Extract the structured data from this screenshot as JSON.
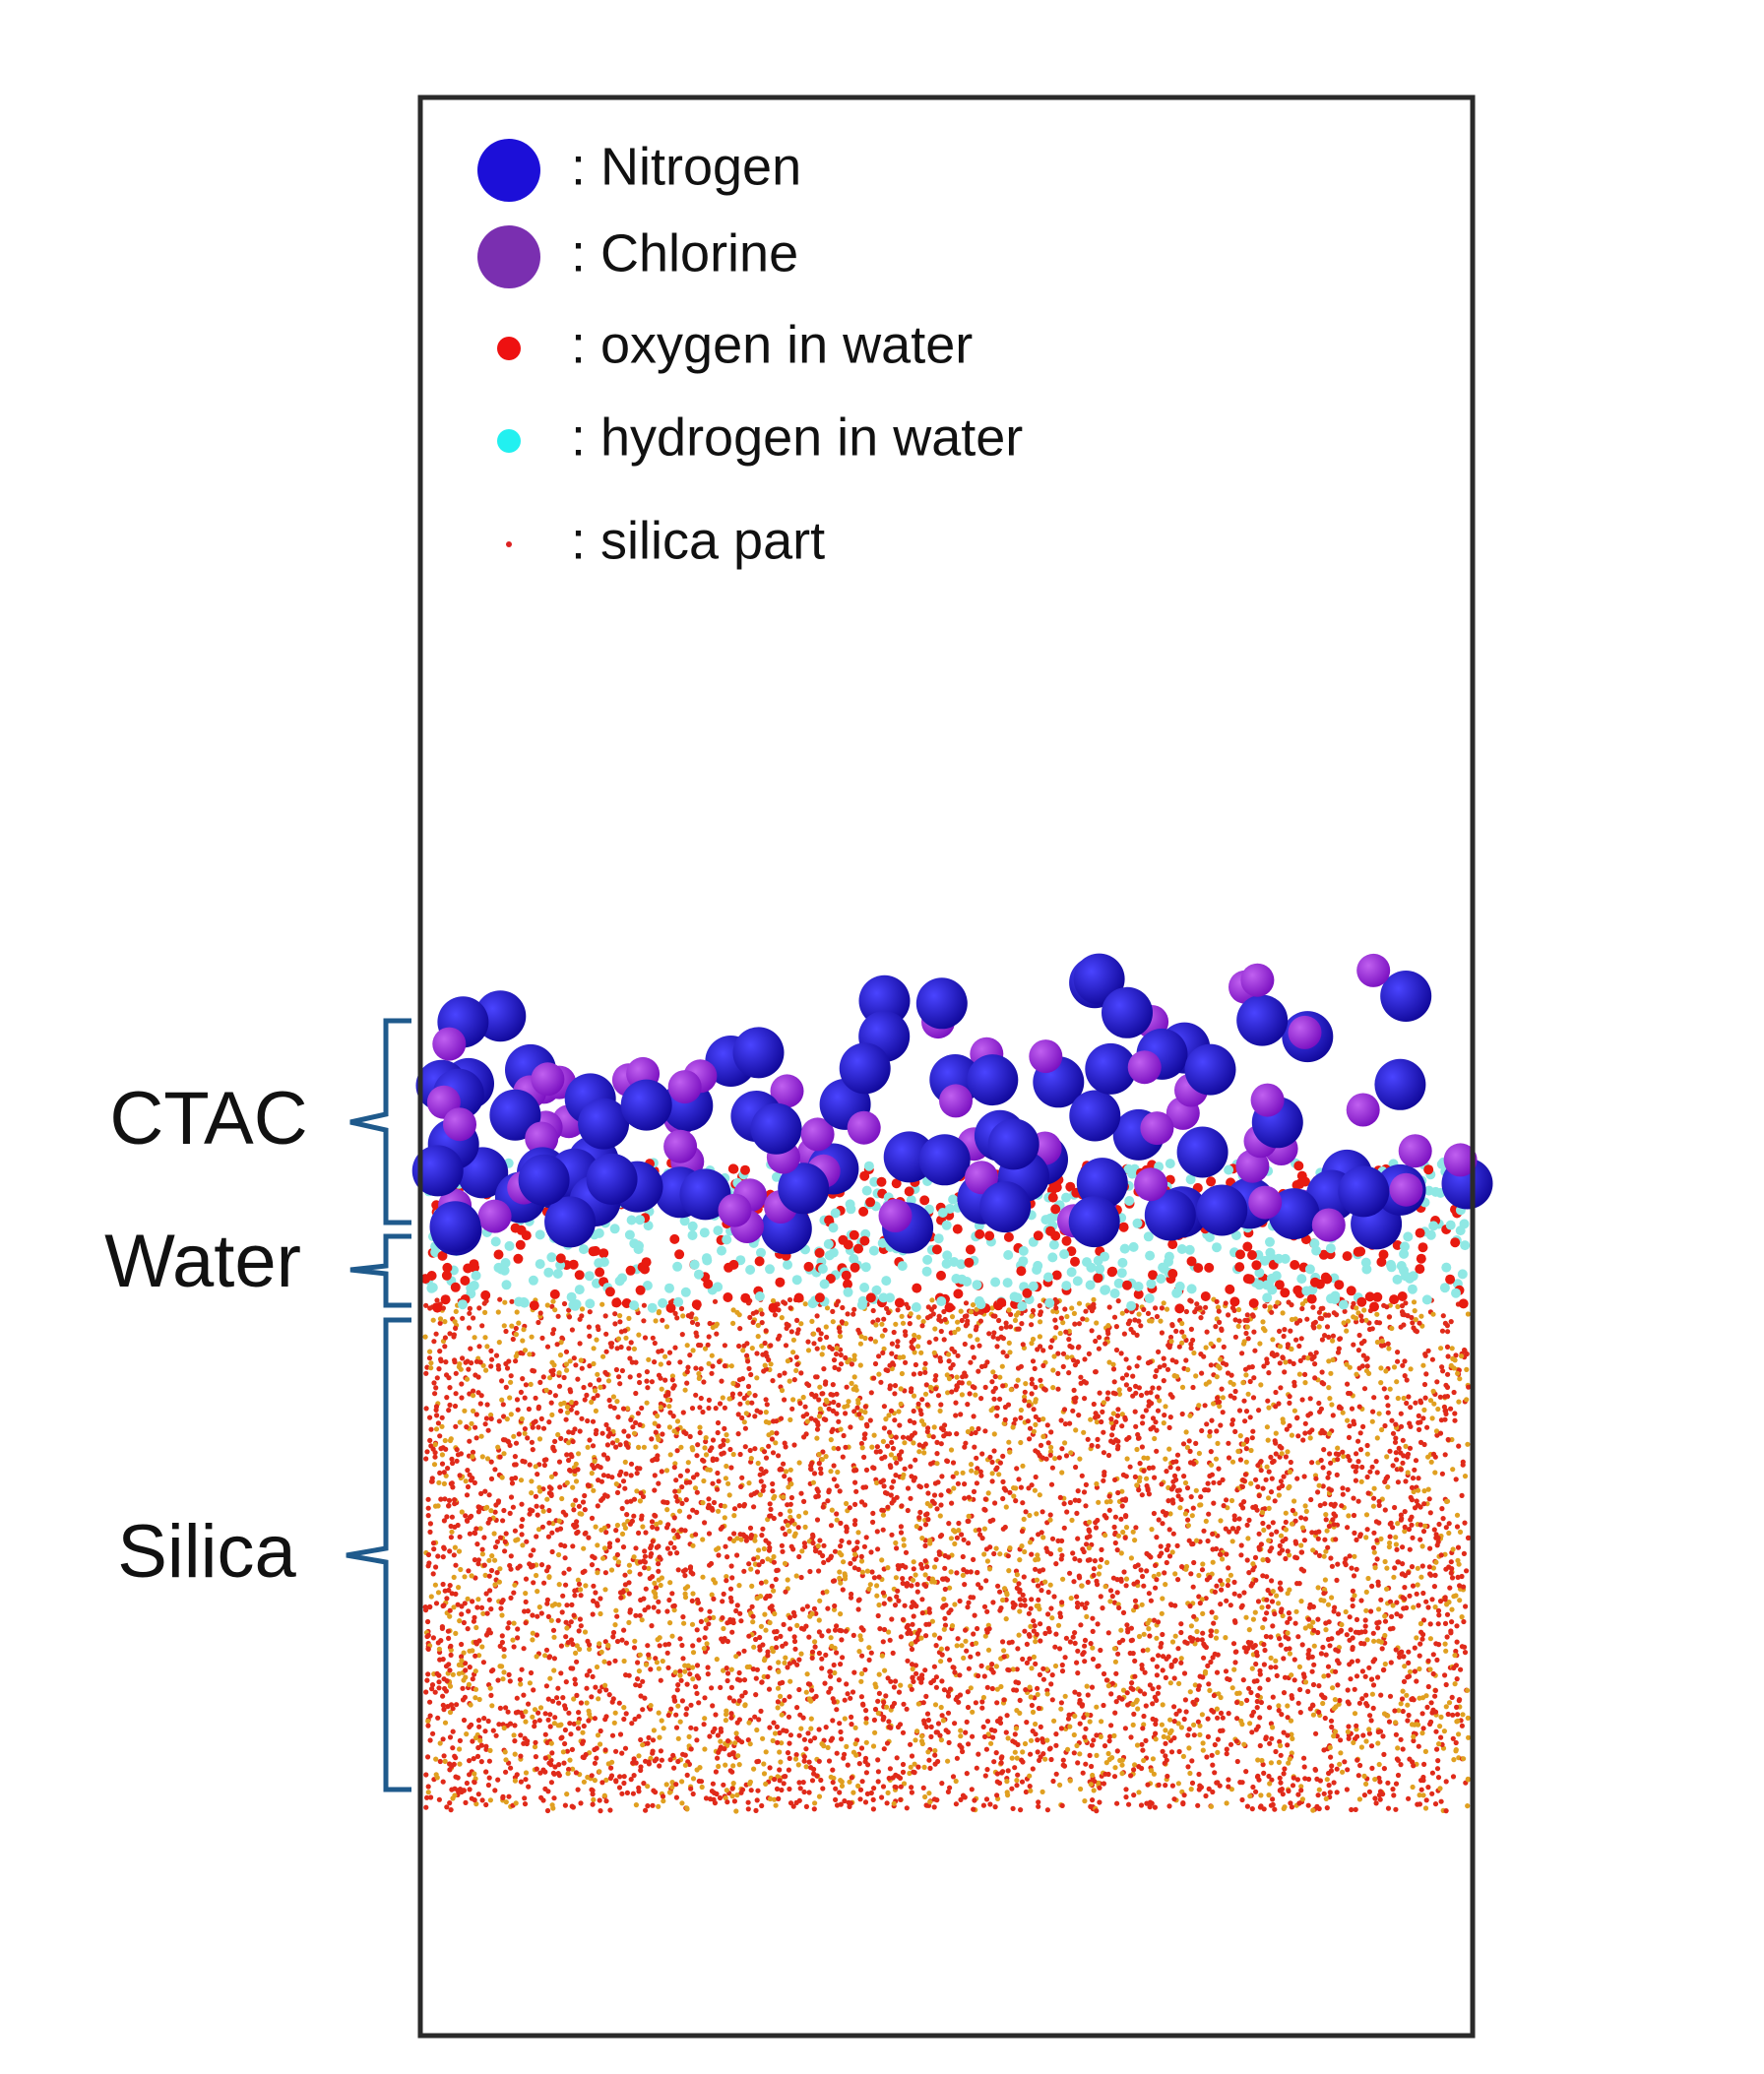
{
  "legend": {
    "items": [
      {
        "label": ": Nitrogen"
      },
      {
        "label": ": Chlorine"
      },
      {
        "label": ": oxygen in water"
      },
      {
        "label": ": hydrogen in water"
      },
      {
        "label": ": silica part"
      }
    ]
  },
  "regions": [
    {
      "label": "CTAC"
    },
    {
      "label": "Water"
    },
    {
      "label": "Silica"
    }
  ]
}
